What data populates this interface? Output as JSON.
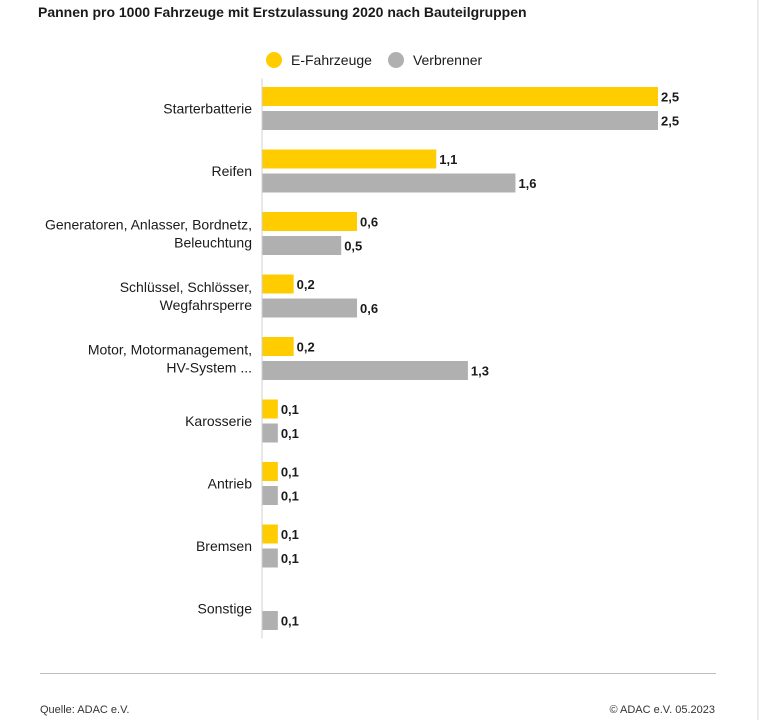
{
  "chart_data": {
    "type": "bar",
    "orientation": "horizontal",
    "title": "Pannen pro 1000 Fahrzeuge mit Erstzulassung 2020 nach Bauteilgruppen",
    "categories": [
      [
        "Starterbatterie"
      ],
      [
        "Reifen"
      ],
      [
        "Generatoren, Anlasser, Bordnetz,",
        "Beleuchtung"
      ],
      [
        "Schlüssel, Schlösser,",
        "Wegfahrsperre"
      ],
      [
        "Motor, Motormanagement,",
        "HV-System ..."
      ],
      [
        "Karosserie"
      ],
      [
        "Antrieb"
      ],
      [
        "Bremsen"
      ],
      [
        "Sonstige"
      ]
    ],
    "series": [
      {
        "name": "E-Fahrzeuge",
        "color": "#ffcc00",
        "values": [
          2.5,
          1.1,
          0.6,
          0.2,
          0.2,
          0.1,
          0.1,
          0.1,
          null
        ],
        "labels": [
          "2,5",
          "1,1",
          "0,6",
          "0,2",
          "0,2",
          "0,1",
          "0,1",
          "0,1",
          null
        ]
      },
      {
        "name": "Verbrenner",
        "color": "#b0b0b0",
        "values": [
          2.5,
          1.6,
          0.5,
          0.6,
          1.3,
          0.1,
          0.1,
          0.1,
          0.1
        ],
        "labels": [
          "2,5",
          "1,6",
          "0,5",
          "0,6",
          "1,3",
          "0,1",
          "0,1",
          "0,1",
          "0,1"
        ]
      }
    ],
    "xlim": [
      0,
      2.5
    ],
    "legend": "top",
    "grid": false
  },
  "footer": {
    "source": "Quelle: ADAC e.V.",
    "copyright": "© ADAC e.V. 05.2023"
  }
}
